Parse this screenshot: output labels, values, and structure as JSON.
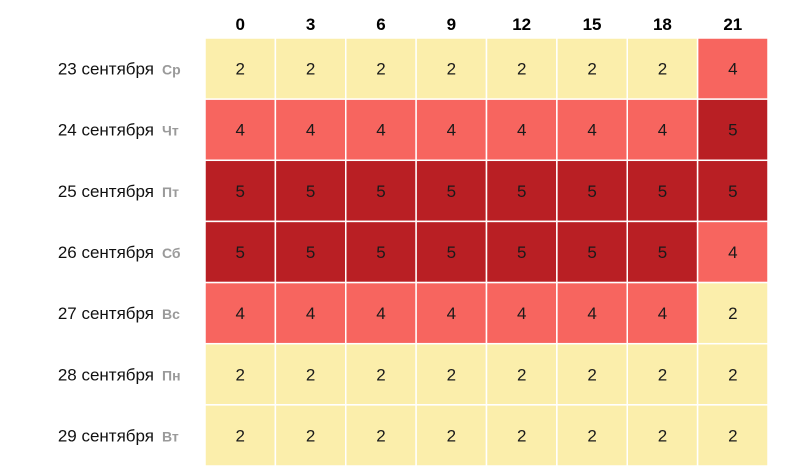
{
  "chart_data": {
    "type": "heatmap",
    "x": [
      "0",
      "3",
      "6",
      "9",
      "12",
      "15",
      "18",
      "21"
    ],
    "rows": [
      {
        "date": "23 сентября",
        "weekday": "Ср"
      },
      {
        "date": "24 сентября",
        "weekday": "Чт"
      },
      {
        "date": "25 сентября",
        "weekday": "Пт"
      },
      {
        "date": "26 сентября",
        "weekday": "Сб"
      },
      {
        "date": "27 сентября",
        "weekday": "Вс"
      },
      {
        "date": "28 сентября",
        "weekday": "Пн"
      },
      {
        "date": "29 сентября",
        "weekday": "Вт"
      }
    ],
    "values": [
      [
        2,
        2,
        2,
        2,
        2,
        2,
        2,
        4
      ],
      [
        4,
        4,
        4,
        4,
        4,
        4,
        4,
        5
      ],
      [
        5,
        5,
        5,
        5,
        5,
        5,
        5,
        5
      ],
      [
        5,
        5,
        5,
        5,
        5,
        5,
        5,
        4
      ],
      [
        4,
        4,
        4,
        4,
        4,
        4,
        4,
        2
      ],
      [
        2,
        2,
        2,
        2,
        2,
        2,
        2,
        2
      ],
      [
        2,
        2,
        2,
        2,
        2,
        2,
        2,
        2
      ]
    ],
    "color_scale": {
      "2": "#fbeeab",
      "4": "#f7655f",
      "5": "#b91f24"
    },
    "grid_line_color": "#ffffff",
    "legend": "none"
  }
}
